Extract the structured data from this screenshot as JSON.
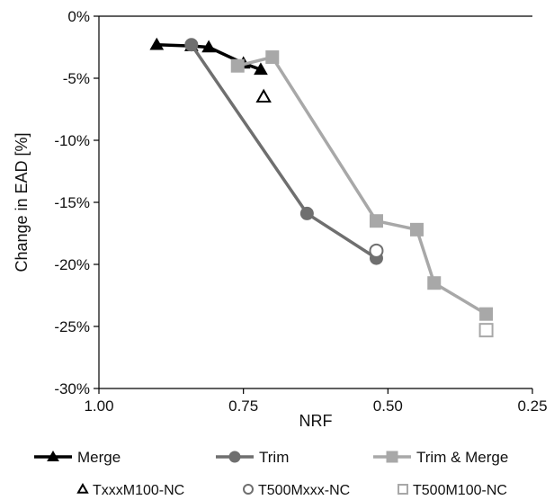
{
  "chart_data": {
    "type": "line",
    "title": "",
    "xlabel": "NRF",
    "ylabel": "Change in EAD [%]",
    "x_reversed": true,
    "xlim": [
      1.0,
      0.25
    ],
    "ylim": [
      -30,
      0
    ],
    "x_ticks": [
      1.0,
      0.75,
      0.5,
      0.25
    ],
    "x_tick_labels": [
      "1.00",
      "0.75",
      "0.50",
      "0.25"
    ],
    "y_ticks": [
      0,
      -5,
      -10,
      -15,
      -20,
      -25,
      -30
    ],
    "y_tick_labels": [
      "0%",
      "-5%",
      "-10%",
      "-15%",
      "-20%",
      "-25%",
      "-30%"
    ],
    "grid": false,
    "legend_position": "bottom",
    "series": [
      {
        "name": "Merge",
        "marker": "triangle",
        "color": "#000000",
        "points": [
          {
            "x": 0.9,
            "y": -2.3
          },
          {
            "x": 0.84,
            "y": -2.4
          },
          {
            "x": 0.81,
            "y": -2.5
          },
          {
            "x": 0.75,
            "y": -3.8
          },
          {
            "x": 0.72,
            "y": -4.3
          }
        ]
      },
      {
        "name": "Trim",
        "marker": "circle",
        "color": "#6f6f6f",
        "points": [
          {
            "x": 0.84,
            "y": -2.3
          },
          {
            "x": 0.64,
            "y": -15.9
          },
          {
            "x": 0.52,
            "y": -19.5
          }
        ]
      },
      {
        "name": "Trim & Merge",
        "marker": "square",
        "color": "#a8a8a8",
        "points": [
          {
            "x": 0.76,
            "y": -4.0
          },
          {
            "x": 0.7,
            "y": -3.3
          },
          {
            "x": 0.52,
            "y": -16.5
          },
          {
            "x": 0.45,
            "y": -17.2
          },
          {
            "x": 0.42,
            "y": -21.5
          },
          {
            "x": 0.33,
            "y": -24.0
          }
        ]
      }
    ],
    "extra_points": [
      {
        "name": "TxxxM100-NC",
        "marker": "triangle-open",
        "color": "#000000",
        "x": 0.715,
        "y": -6.5
      },
      {
        "name": "T500Mxxx-NC",
        "marker": "circle-open",
        "color": "#6f6f6f",
        "x": 0.52,
        "y": -18.9
      },
      {
        "name": "T500M100-NC",
        "marker": "square-open",
        "color": "#a8a8a8",
        "x": 0.33,
        "y": -25.3
      }
    ]
  }
}
